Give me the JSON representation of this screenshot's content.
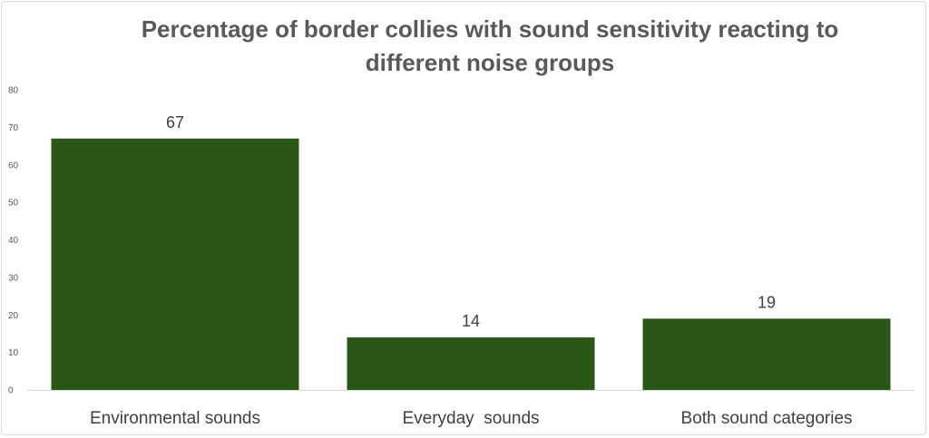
{
  "chart_data": {
    "type": "bar",
    "title": "Percentage of border collies with sound sensitivity reacting to\ndifferent noise groups",
    "categories": [
      "Environmental sounds",
      "Everyday  sounds",
      "Both sound categories"
    ],
    "values": [
      67,
      14,
      19
    ],
    "data_labels": [
      "67",
      "14",
      "19"
    ],
    "ylim": [
      0,
      80
    ],
    "yticks": [
      0,
      10,
      20,
      30,
      40,
      50,
      60,
      70,
      80
    ],
    "xlabel": "",
    "ylabel": "",
    "grid": false,
    "legend": "none",
    "bar_color": "#2a5718"
  }
}
